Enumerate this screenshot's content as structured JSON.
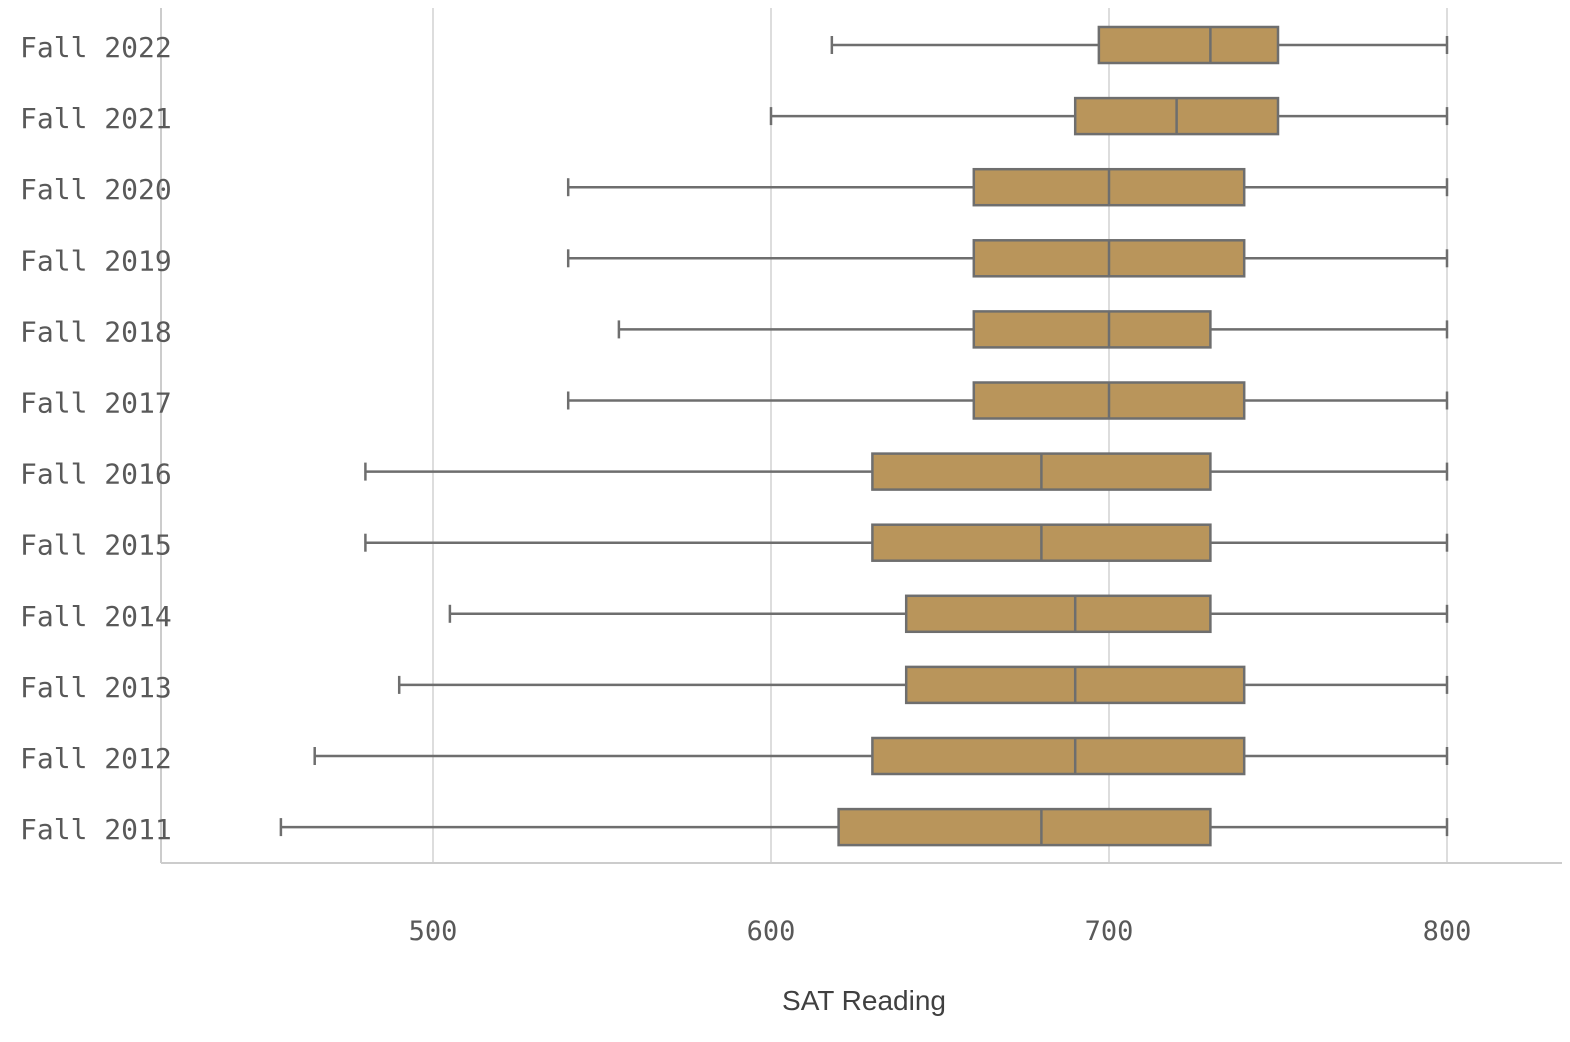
{
  "chart_data": {
    "type": "boxplot",
    "orientation": "horizontal",
    "xlabel": "SAT Reading",
    "ylabel": "",
    "xlim": [
      420,
      833
    ],
    "xticks": [
      500,
      600,
      700,
      800
    ],
    "xtick_labels": [
      "500",
      "600",
      "700",
      "800"
    ],
    "grid": "vertical",
    "categories": [
      "Fall 2022",
      "Fall 2021",
      "Fall 2020",
      "Fall 2019",
      "Fall 2018",
      "Fall 2017",
      "Fall 2016",
      "Fall 2015",
      "Fall 2014",
      "Fall 2013",
      "Fall 2012",
      "Fall 2011"
    ],
    "boxes": [
      {
        "category": "Fall 2022",
        "min": 618,
        "q1": 697,
        "median": 730,
        "q3": 750,
        "max": 800
      },
      {
        "category": "Fall 2021",
        "min": 600,
        "q1": 690,
        "median": 720,
        "q3": 750,
        "max": 800
      },
      {
        "category": "Fall 2020",
        "min": 540,
        "q1": 660,
        "median": 700,
        "q3": 740,
        "max": 800
      },
      {
        "category": "Fall 2019",
        "min": 540,
        "q1": 660,
        "median": 700,
        "q3": 740,
        "max": 800
      },
      {
        "category": "Fall 2018",
        "min": 555,
        "q1": 660,
        "median": 700,
        "q3": 730,
        "max": 800
      },
      {
        "category": "Fall 2017",
        "min": 540,
        "q1": 660,
        "median": 700,
        "q3": 740,
        "max": 800
      },
      {
        "category": "Fall 2016",
        "min": 480,
        "q1": 630,
        "median": 680,
        "q3": 730,
        "max": 800
      },
      {
        "category": "Fall 2015",
        "min": 480,
        "q1": 630,
        "median": 680,
        "q3": 730,
        "max": 800
      },
      {
        "category": "Fall 2014",
        "min": 505,
        "q1": 640,
        "median": 690,
        "q3": 730,
        "max": 800
      },
      {
        "category": "Fall 2013",
        "min": 490,
        "q1": 640,
        "median": 690,
        "q3": 740,
        "max": 800
      },
      {
        "category": "Fall 2012",
        "min": 465,
        "q1": 630,
        "median": 690,
        "q3": 740,
        "max": 800
      },
      {
        "category": "Fall 2011",
        "min": 455,
        "q1": 620,
        "median": 680,
        "q3": 730,
        "max": 800
      }
    ],
    "colors": {
      "box_fill": "#b9955b",
      "box_stroke": "#6e6e6e",
      "whisker": "#6e6e6e",
      "grid": "#d2d2d2",
      "axis": "#cccccc"
    }
  }
}
